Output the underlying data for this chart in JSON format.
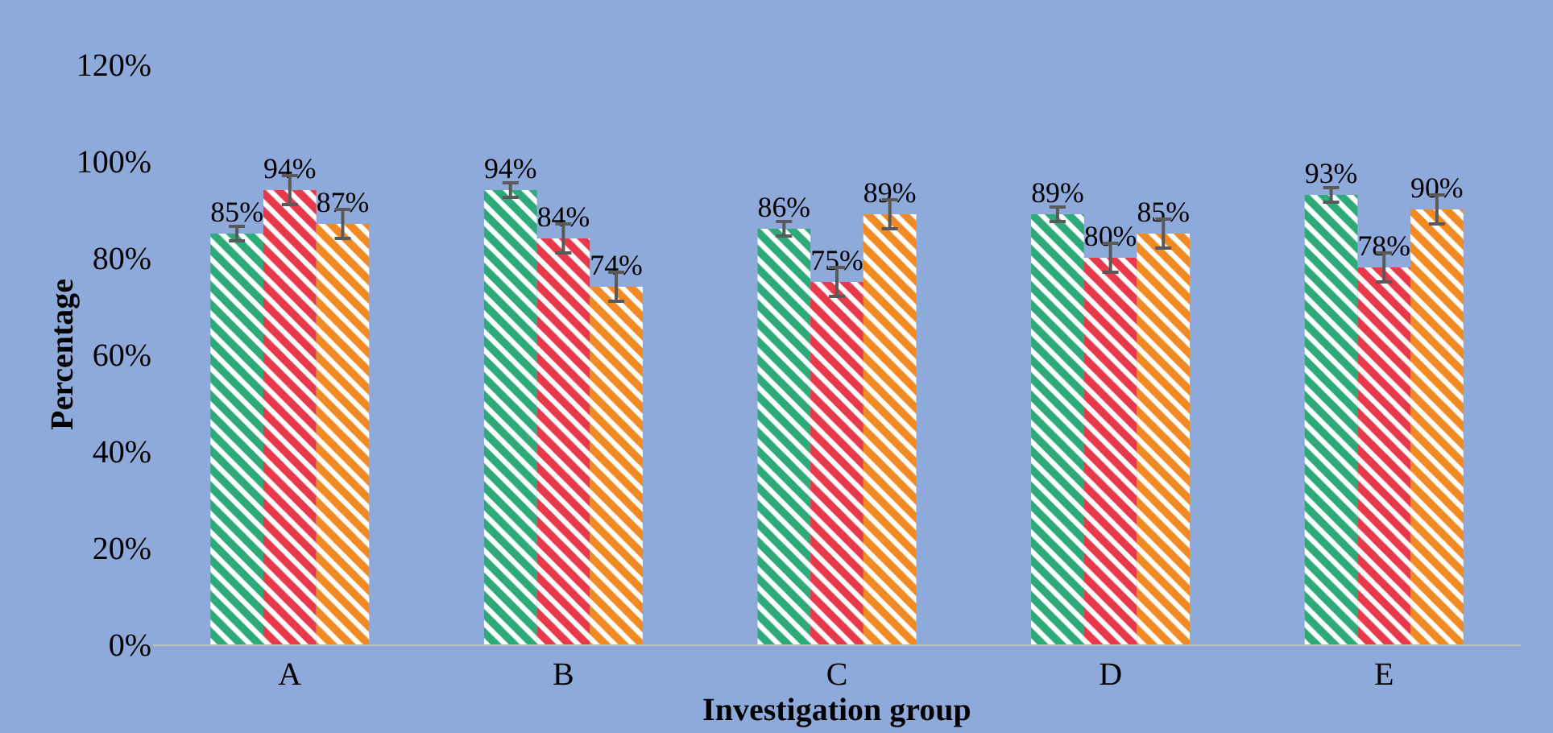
{
  "chart_data": {
    "type": "bar",
    "xlabel": "Investigation group",
    "ylabel": "Percentage",
    "categories": [
      "A",
      "B",
      "C",
      "D",
      "E"
    ],
    "series": [
      {
        "color": "#2eaa78",
        "values": [
          85,
          94,
          86,
          89,
          93
        ],
        "errors": [
          1.5,
          1.5,
          1.5,
          1.5,
          1.5
        ],
        "value_labels": [
          "85%",
          "94%",
          "86%",
          "89%",
          "93%"
        ]
      },
      {
        "color": "#e8394a",
        "values": [
          94,
          84,
          75,
          80,
          78
        ],
        "errors": [
          3,
          3,
          3,
          3,
          3
        ],
        "value_labels": [
          "94%",
          "84%",
          "75%",
          "80%",
          "78%"
        ]
      },
      {
        "color": "#f28a24",
        "values": [
          87,
          74,
          89,
          85,
          90
        ],
        "errors": [
          3,
          3,
          3,
          3,
          3
        ],
        "value_labels": [
          "87%",
          "74%",
          "89%",
          "85%",
          "90%"
        ]
      }
    ],
    "ylim": [
      0,
      120
    ],
    "yticks": [
      {
        "value": 0,
        "label": "0%"
      },
      {
        "value": 20,
        "label": "20%"
      },
      {
        "value": 40,
        "label": "40%"
      },
      {
        "value": 60,
        "label": "60%"
      },
      {
        "value": 80,
        "label": "80%"
      },
      {
        "value": 100,
        "label": "100%"
      },
      {
        "value": 120,
        "label": "120%"
      }
    ],
    "grid": false
  }
}
